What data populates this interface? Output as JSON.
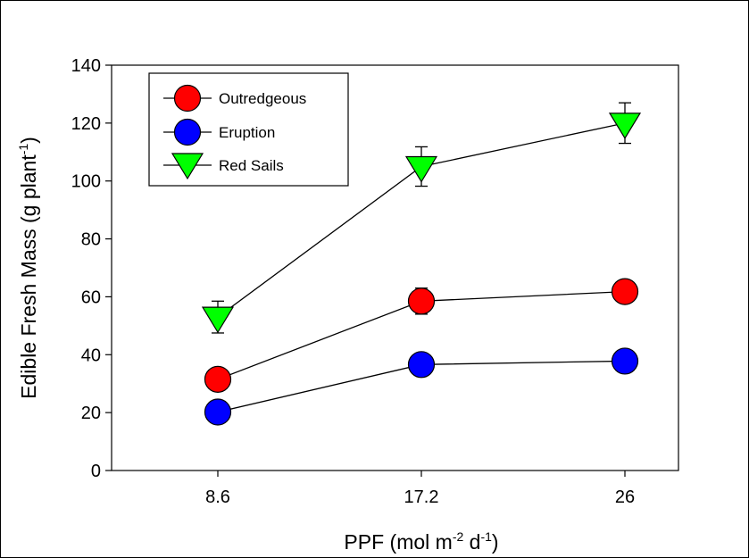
{
  "chart_data": {
    "type": "line",
    "title": "",
    "xlabel": "PPF (mol m",
    "xlabel_sup1": "-2",
    "xlabel_mid": " d",
    "xlabel_sup2": "-1",
    "xlabel_end": ")",
    "ylabel": "Edible Fresh Mass (g plant",
    "ylabel_sup": "-1",
    "ylabel_end": ")",
    "categories": [
      "8.6",
      "17.2",
      "26"
    ],
    "x_ticks": [
      "8.6",
      "17.2",
      "26"
    ],
    "ylim": [
      0,
      140
    ],
    "y_ticks": [
      "0",
      "20",
      "40",
      "60",
      "80",
      "100",
      "120",
      "140"
    ],
    "grid": false,
    "legend_position": "top-left",
    "series": [
      {
        "name": "Outredgeous",
        "marker": "circle",
        "color": "#ff0000",
        "values": [
          31.5,
          58.5,
          61.8
        ],
        "errors": [
          1.5,
          4.5,
          2.0
        ]
      },
      {
        "name": "Eruption",
        "marker": "circle",
        "color": "#0000ff",
        "values": [
          20.2,
          36.6,
          37.8
        ],
        "errors": [
          1.2,
          2.0,
          2.0
        ]
      },
      {
        "name": "Red Sails",
        "marker": "triangle-down",
        "color": "#00ff00",
        "values": [
          53.0,
          105.0,
          120.0
        ],
        "errors": [
          5.5,
          6.8,
          7.0
        ]
      }
    ]
  }
}
